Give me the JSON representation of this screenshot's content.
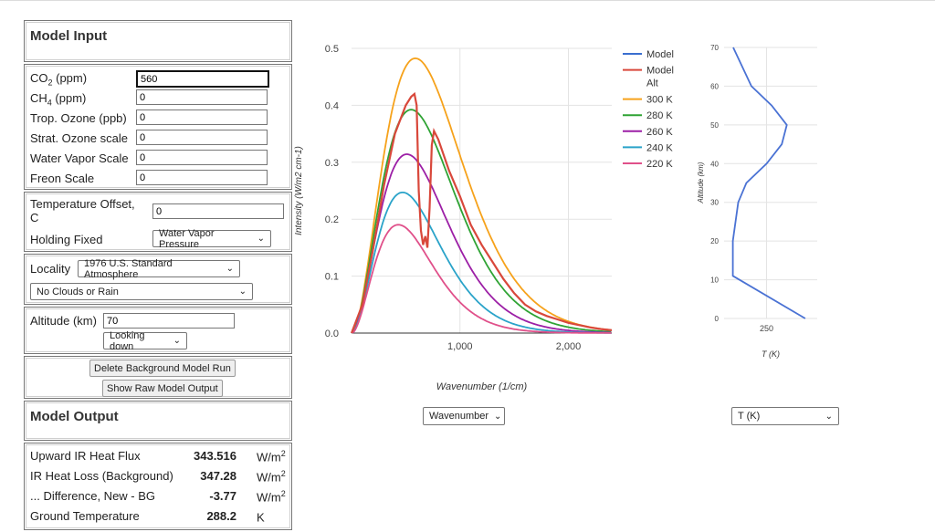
{
  "model_input": {
    "title": "Model Input",
    "co2": {
      "label": "CO",
      "sub": "2",
      "unit": " (ppm)",
      "value": "560"
    },
    "ch4": {
      "label": "CH",
      "sub": "4",
      "unit": " (ppm)",
      "value": "0"
    },
    "trop_ozone": {
      "label": "Trop. Ozone (ppb)",
      "value": "0"
    },
    "strat_ozone": {
      "label": "Strat. Ozone scale",
      "value": "0"
    },
    "water_vapor": {
      "label": "Water Vapor Scale",
      "value": "0"
    },
    "freon": {
      "label": "Freon Scale",
      "value": "0"
    },
    "temp_offset": {
      "label_line1": "Temperature Offset,",
      "label_line2": "C",
      "value": "0"
    },
    "holding_fixed": {
      "label": "Holding Fixed",
      "selected": "Water Vapor Pressure"
    },
    "locality": {
      "label": "Locality",
      "selected": "1976 U.S. Standard Atmosphere"
    },
    "clouds": {
      "selected": "No Clouds or Rain"
    },
    "altitude": {
      "label": "Altitude (km)",
      "value": "70"
    },
    "looking": {
      "selected": "Looking down"
    },
    "buttons": {
      "delete_bg": "Delete Background Model Run",
      "show_raw": "Show Raw Model Output"
    }
  },
  "model_output": {
    "title": "Model Output",
    "rows": [
      {
        "label": "Upward IR Heat Flux",
        "value": "343.516",
        "unit": "W/m",
        "sup": "2"
      },
      {
        "label": "IR Heat Loss (Background)",
        "value": "347.28",
        "unit": "W/m",
        "sup": "2"
      },
      {
        "label": "... Difference, New - BG",
        "value": "-3.77",
        "unit": "W/m",
        "sup": "2"
      },
      {
        "label": "Ground Temperature",
        "value": "288.2",
        "unit": "K",
        "sup": ""
      }
    ]
  },
  "spectrum_controls": {
    "x_axis_select": "Wavenumber"
  },
  "profile_controls": {
    "y_axis_select": "T (K)"
  },
  "chart_data": [
    {
      "type": "line",
      "title": "",
      "xlabel": "Wavenumber (1/cm)",
      "ylabel": "Intensity (W/m2 cm-1)",
      "xlim": [
        0,
        2400
      ],
      "ylim": [
        0,
        0.5
      ],
      "x_ticks": [
        1000,
        2000
      ],
      "x_tick_labels": [
        "1,000",
        "2,000"
      ],
      "y_ticks": [
        0.0,
        0.1,
        0.2,
        0.3,
        0.4,
        0.5
      ],
      "y_tick_labels": [
        "0.0",
        "0.1",
        "0.2",
        "0.3",
        "0.4",
        "0.5"
      ],
      "grid": true,
      "legend_position": "right",
      "series": [
        {
          "name": "Model",
          "color": "#3a6fd0",
          "x": [
            0,
            100,
            200,
            300,
            400,
            500,
            550,
            580,
            600,
            620,
            640,
            660,
            680,
            700,
            720,
            740,
            760,
            800,
            900,
            1000,
            1100,
            1200,
            1300,
            1400,
            1500,
            1600,
            1700,
            1800,
            1900,
            2000,
            2100,
            2200,
            2300,
            2400
          ],
          "y": [
            0,
            0.05,
            0.15,
            0.26,
            0.35,
            0.4,
            0.415,
            0.42,
            0.4,
            0.25,
            0.18,
            0.155,
            0.17,
            0.15,
            0.22,
            0.33,
            0.355,
            0.34,
            0.285,
            0.24,
            0.19,
            0.155,
            0.125,
            0.095,
            0.07,
            0.05,
            0.038,
            0.03,
            0.024,
            0.018,
            0.014,
            0.01,
            0.007,
            0.005
          ]
        },
        {
          "name": "Model Alt",
          "color": "#d9483b",
          "x": [
            0,
            100,
            200,
            300,
            400,
            500,
            550,
            580,
            600,
            620,
            640,
            660,
            680,
            700,
            720,
            740,
            760,
            800,
            900,
            1000,
            1100,
            1200,
            1300,
            1400,
            1500,
            1600,
            1700,
            1800,
            1900,
            2000,
            2100,
            2200,
            2300,
            2400
          ],
          "y": [
            0,
            0.05,
            0.15,
            0.26,
            0.35,
            0.4,
            0.415,
            0.42,
            0.4,
            0.25,
            0.18,
            0.155,
            0.17,
            0.15,
            0.22,
            0.33,
            0.355,
            0.34,
            0.285,
            0.24,
            0.19,
            0.155,
            0.125,
            0.095,
            0.07,
            0.05,
            0.038,
            0.03,
            0.024,
            0.018,
            0.014,
            0.01,
            0.007,
            0.005
          ]
        },
        {
          "name": "300 K",
          "color": "#f6a21b",
          "temperature": 300
        },
        {
          "name": "280 K",
          "color": "#2fa334",
          "temperature": 280
        },
        {
          "name": "260 K",
          "color": "#9c1fa6",
          "temperature": 260
        },
        {
          "name": "240 K",
          "color": "#2aa3c9",
          "temperature": 240
        },
        {
          "name": "220 K",
          "color": "#e0508a",
          "temperature": 220
        }
      ]
    },
    {
      "type": "line",
      "title": "",
      "xlabel": "T (K)",
      "ylabel": "Altitude (km)",
      "xlim": [
        208,
        300
      ],
      "ylim": [
        0,
        70
      ],
      "x_ticks": [
        250
      ],
      "x_tick_labels": [
        "250"
      ],
      "y_ticks": [
        0,
        10,
        20,
        30,
        40,
        50,
        60,
        70
      ],
      "y_tick_labels": [
        "0",
        "10",
        "20",
        "30",
        "40",
        "50",
        "60",
        "70"
      ],
      "grid": true,
      "series": [
        {
          "name": "",
          "color": "#4a72d4",
          "x": [
            288.2,
            216.7,
            216.7,
            222,
            230,
            250,
            265,
            270,
            255,
            235,
            217
          ],
          "y": [
            0,
            11,
            20,
            30,
            35,
            40,
            45,
            50,
            55,
            60,
            70
          ]
        }
      ]
    }
  ]
}
